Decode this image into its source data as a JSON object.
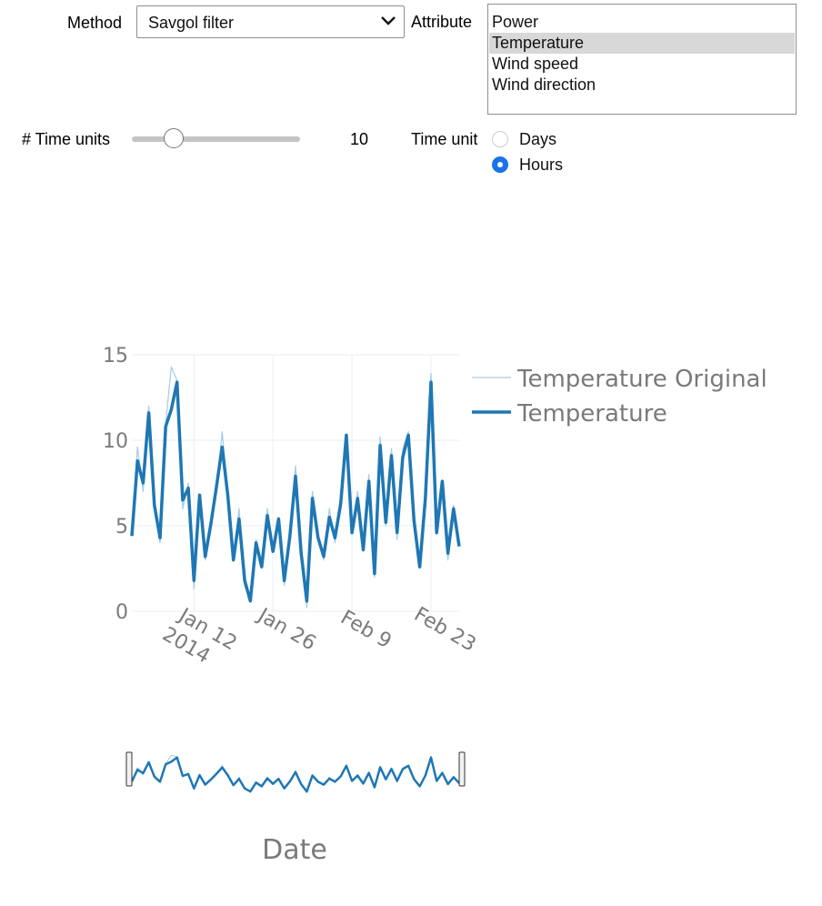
{
  "controls": {
    "method_label": "Method",
    "method_value": "Savgol filter",
    "attribute_label": "Attribute",
    "attribute_options": [
      "Power",
      "Temperature",
      "Wind speed",
      "Wind direction"
    ],
    "attribute_selected": "Temperature",
    "time_units_label": "# Time units",
    "time_units_value": "10",
    "time_units_slider_fraction": 0.25,
    "time_unit_label": "Time unit",
    "time_unit_options": [
      "Days",
      "Hours"
    ],
    "time_unit_selected": "Hours"
  },
  "colors": {
    "smoothed": "#1f77b4",
    "original": "#a9cde8",
    "text": "#7a7a7a",
    "grid": "#e8eef7"
  },
  "chart_data": {
    "type": "line",
    "xlabel": "Date",
    "ylabel": "",
    "x_range": [
      "2014-01-01",
      "2014-02-28"
    ],
    "ylim": [
      0,
      15
    ],
    "y_ticks": [
      0,
      5,
      10,
      15
    ],
    "x_ticks": [
      {
        "date": "2014-01-12",
        "label": "Jan 12",
        "sublabel": "2014"
      },
      {
        "date": "2014-01-26",
        "label": "Jan 26",
        "sublabel": ""
      },
      {
        "date": "2014-02-09",
        "label": "Feb 9",
        "sublabel": ""
      },
      {
        "date": "2014-02-23",
        "label": "Feb 23",
        "sublabel": ""
      }
    ],
    "grid": true,
    "legend_position": "top-right",
    "rangeslider": true,
    "series": [
      {
        "name": "Temperature Original",
        "style": "thin",
        "x": [
          "2014-01-01",
          "2014-01-02",
          "2014-01-03",
          "2014-01-04",
          "2014-01-05",
          "2014-01-06",
          "2014-01-07",
          "2014-01-08",
          "2014-01-09",
          "2014-01-10",
          "2014-01-11",
          "2014-01-12",
          "2014-01-13",
          "2014-01-14",
          "2014-01-15",
          "2014-01-16",
          "2014-01-17",
          "2014-01-18",
          "2014-01-19",
          "2014-01-20",
          "2014-01-21",
          "2014-01-22",
          "2014-01-23",
          "2014-01-24",
          "2014-01-25",
          "2014-01-26",
          "2014-01-27",
          "2014-01-28",
          "2014-01-29",
          "2014-01-30",
          "2014-01-31",
          "2014-02-01",
          "2014-02-02",
          "2014-02-03",
          "2014-02-04",
          "2014-02-05",
          "2014-02-06",
          "2014-02-07",
          "2014-02-08",
          "2014-02-09",
          "2014-02-10",
          "2014-02-11",
          "2014-02-12",
          "2014-02-13",
          "2014-02-14",
          "2014-02-15",
          "2014-02-16",
          "2014-02-17",
          "2014-02-18",
          "2014-02-19",
          "2014-02-20",
          "2014-02-21",
          "2014-02-22",
          "2014-02-23",
          "2014-02-24",
          "2014-02-25",
          "2014-02-26",
          "2014-02-27",
          "2014-02-28"
        ],
        "y": [
          4.5,
          9.6,
          7.0,
          12.0,
          6.0,
          4.0,
          11.0,
          14.3,
          13.5,
          6.0,
          7.5,
          1.3,
          6.5,
          3.0,
          5.0,
          7.0,
          10.5,
          7.0,
          3.0,
          6.0,
          1.5,
          0.6,
          4.2,
          2.5,
          6.0,
          3.5,
          5.5,
          1.5,
          4.5,
          8.5,
          3.5,
          0.2,
          7.0,
          4.5,
          3.0,
          6.0,
          4.0,
          6.5,
          10.2,
          4.5,
          7.0,
          3.5,
          8.0,
          2.0,
          10.2,
          5.0,
          9.5,
          4.2,
          9.5,
          10.5,
          5.5,
          2.5,
          6.5,
          13.9,
          4.5,
          7.5,
          3.0,
          6.2,
          4.2
        ]
      },
      {
        "name": "Temperature",
        "style": "thick",
        "x": [
          "2014-01-01",
          "2014-01-02",
          "2014-01-03",
          "2014-01-04",
          "2014-01-05",
          "2014-01-06",
          "2014-01-07",
          "2014-01-08",
          "2014-01-09",
          "2014-01-10",
          "2014-01-11",
          "2014-01-12",
          "2014-01-13",
          "2014-01-14",
          "2014-01-15",
          "2014-01-16",
          "2014-01-17",
          "2014-01-18",
          "2014-01-19",
          "2014-01-20",
          "2014-01-21",
          "2014-01-22",
          "2014-01-23",
          "2014-01-24",
          "2014-01-25",
          "2014-01-26",
          "2014-01-27",
          "2014-01-28",
          "2014-01-29",
          "2014-01-30",
          "2014-01-31",
          "2014-02-01",
          "2014-02-02",
          "2014-02-03",
          "2014-02-04",
          "2014-02-05",
          "2014-02-06",
          "2014-02-07",
          "2014-02-08",
          "2014-02-09",
          "2014-02-10",
          "2014-02-11",
          "2014-02-12",
          "2014-02-13",
          "2014-02-14",
          "2014-02-15",
          "2014-02-16",
          "2014-02-17",
          "2014-02-18",
          "2014-02-19",
          "2014-02-20",
          "2014-02-21",
          "2014-02-22",
          "2014-02-23",
          "2014-02-24",
          "2014-02-25",
          "2014-02-26",
          "2014-02-27",
          "2014-02-28"
        ],
        "y": [
          4.4,
          8.8,
          7.5,
          11.6,
          6.2,
          4.3,
          10.8,
          11.8,
          13.4,
          6.5,
          7.2,
          1.8,
          6.8,
          3.2,
          5.1,
          7.3,
          9.6,
          6.8,
          3.0,
          5.4,
          1.8,
          0.6,
          4.0,
          2.6,
          5.6,
          3.5,
          5.4,
          1.8,
          4.4,
          7.9,
          3.4,
          0.6,
          6.6,
          4.3,
          3.2,
          5.5,
          4.3,
          6.3,
          10.3,
          4.6,
          6.6,
          3.6,
          7.6,
          2.2,
          9.7,
          5.2,
          9.1,
          4.6,
          9.0,
          10.3,
          5.3,
          2.6,
          6.6,
          13.4,
          4.6,
          7.6,
          3.4,
          6.0,
          3.8
        ]
      }
    ]
  }
}
